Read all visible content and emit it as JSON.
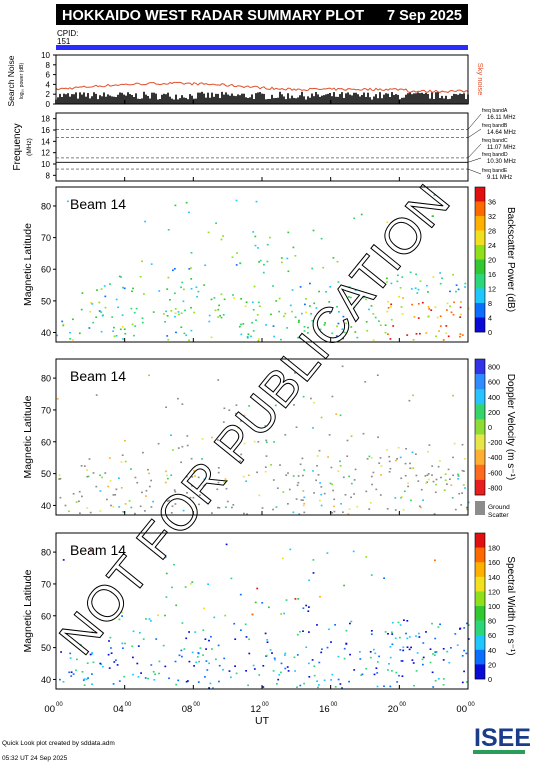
{
  "header": {
    "title": "HOKKAIDO WEST RADAR SUMMARY PLOT",
    "date": "7 Sep 2025",
    "cpid_label": "CPID:",
    "cpid_value": "151"
  },
  "colors": {
    "header_bg": "#000000",
    "header_fg": "#ffffff",
    "cpid_bar": "#2b2bff",
    "noise_line": "#e0502a",
    "ground_scatter": "#8c8c8c",
    "watermark": "#000000"
  },
  "noise_panel": {
    "ylabel": "Search Noise",
    "ylabel_units": "log₁₀ power (dB)",
    "side_label": "Sky noise",
    "ticks": [
      0,
      2,
      4,
      6,
      8,
      10
    ]
  },
  "freq_panel": {
    "ylabel": "Frequency",
    "ylabel_units": "(MHz)",
    "ticks": [
      8,
      10,
      12,
      14,
      16,
      18
    ],
    "bands": [
      {
        "name": "freq bandA",
        "value": "16.11 MHz",
        "mhz": 16.11
      },
      {
        "name": "freq bandB",
        "value": "14.64 MHz",
        "mhz": 14.64
      },
      {
        "name": "freq bandC",
        "value": "11.07 MHz",
        "mhz": 11.07
      },
      {
        "name": "freq bandD",
        "value": "10.30 MHz",
        "mhz": 10.3
      },
      {
        "name": "freq bandE",
        "value": "9.11 MHz",
        "mhz": 9.11
      }
    ]
  },
  "chart_data": [
    {
      "type": "heatmap",
      "panel_label": "Beam 14",
      "ylabel": "Magnetic Latitude",
      "ylim": [
        37,
        86
      ],
      "yticks": [
        40,
        50,
        60,
        70,
        80
      ],
      "colorbar": {
        "label": "Backscatter Power (dB)",
        "ticks": [
          0,
          4,
          8,
          12,
          16,
          20,
          24,
          28,
          32,
          36
        ]
      }
    },
    {
      "type": "heatmap",
      "panel_label": "Beam 14",
      "ylabel": "Magnetic Latitude",
      "ylim": [
        37,
        86
      ],
      "yticks": [
        40,
        50,
        60,
        70,
        80
      ],
      "colorbar": {
        "label": "Doppler Velocity (m s⁻¹)",
        "ticks": [
          800,
          600,
          400,
          200,
          0,
          -200,
          -400,
          -600,
          -800
        ],
        "extra_label": "Ground Scatter"
      }
    },
    {
      "type": "heatmap",
      "panel_label": "Beam 14",
      "ylabel": "Magnetic Latitude",
      "ylim": [
        37,
        86
      ],
      "yticks": [
        40,
        50,
        60,
        70,
        80
      ],
      "colorbar": {
        "label": "Spectral Width (m s⁻¹)",
        "ticks": [
          0,
          20,
          40,
          60,
          80,
          100,
          120,
          140,
          160,
          180
        ]
      }
    }
  ],
  "xaxis": {
    "label": "UT",
    "ticks": [
      "00",
      "04",
      "08",
      "12",
      "16",
      "20",
      "00"
    ],
    "tick_sup": "00"
  },
  "footer": {
    "line1": "Quick Look plot created by sddata.adm",
    "line2": "05:32 UT 24 Sep 2025"
  },
  "logo": {
    "text": "ISEE"
  },
  "watermark": {
    "text": "NOT FOR PUBLICATION"
  }
}
